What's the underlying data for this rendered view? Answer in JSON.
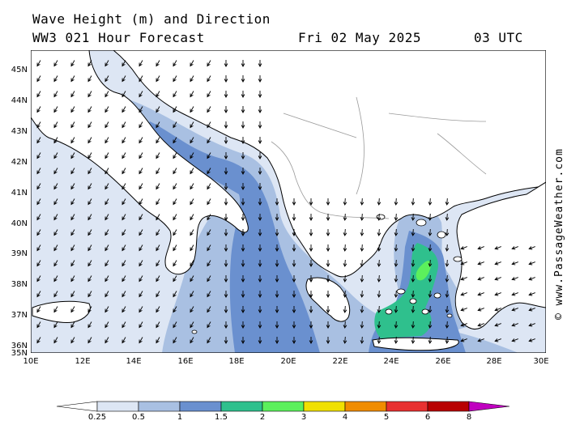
{
  "header": {
    "title": "Wave Height (m) and Direction",
    "model_run": "WW3 021 Hour Forecast",
    "valid_date": "Fri 02 May 2025",
    "valid_time": "03 UTC"
  },
  "credit": "© www.PassageWeather.com",
  "axes": {
    "lat_labels": [
      "45N",
      "44N",
      "43N",
      "42N",
      "41N",
      "40N",
      "39N",
      "38N",
      "37N",
      "36N",
      "35N"
    ],
    "lon_labels": [
      "10E",
      "12E",
      "14E",
      "16E",
      "18E",
      "20E",
      "22E",
      "24E",
      "26E",
      "28E",
      "30E"
    ],
    "lat_range": [
      35,
      45.5
    ],
    "lon_range": [
      10,
      30
    ]
  },
  "colorbar": {
    "labels": [
      "0.25",
      "0.5",
      "1",
      "1.5",
      "2",
      "3",
      "4",
      "5",
      "6",
      "8"
    ],
    "colors": [
      "#ffffff",
      "#dde6f4",
      "#a9c0e2",
      "#6a90cf",
      "#2fc08d",
      "#5cf05c",
      "#f0e000",
      "#f08c00",
      "#e83030",
      "#b80000",
      "#c000c0"
    ]
  },
  "colors": {
    "land": "#ffffff",
    "coast": "#000000",
    "border": "#9a9a9a",
    "arrow": "#000000"
  }
}
